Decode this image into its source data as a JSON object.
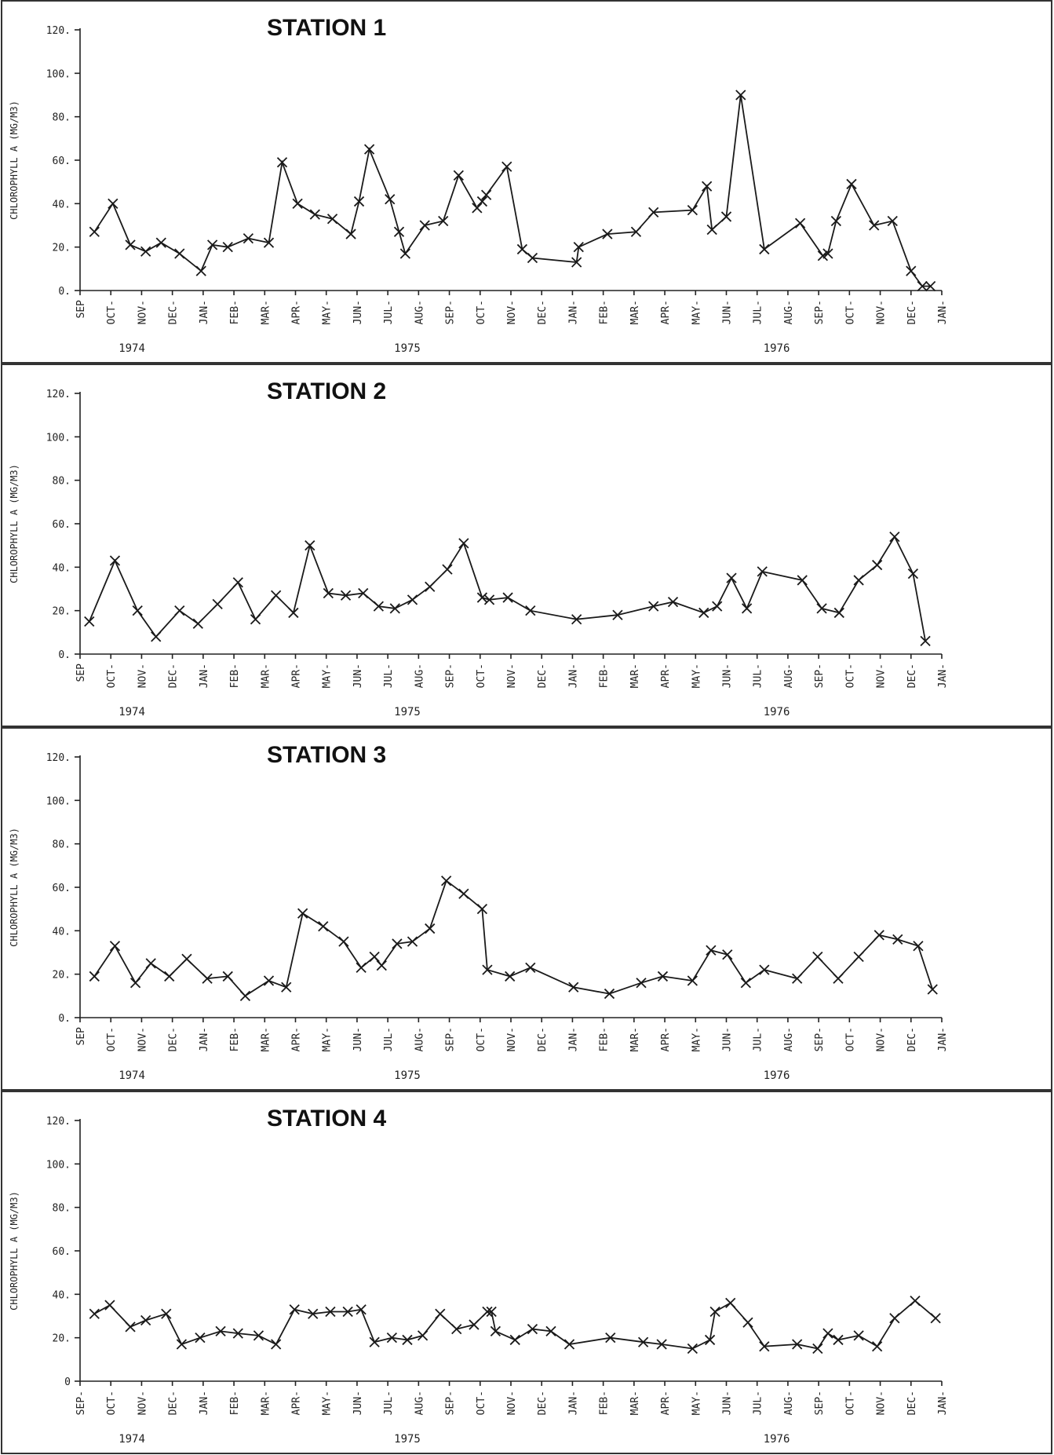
{
  "chart_data": [
    {
      "type": "line",
      "title": "STATION 1",
      "ylabel": "CHLOROPHYLL A (MG/M3)",
      "ylim": [
        0,
        120
      ],
      "yticks": [
        "0.",
        "20.",
        "40.",
        "60.",
        "80.",
        "100.",
        "120."
      ],
      "month_labels": [
        "SEP",
        "OCT-",
        "NOV-",
        "DEC-",
        "JAN-",
        "FEB-",
        "MAR-",
        "APR-",
        "MAY-",
        "JUN-",
        "JUL-",
        "AUG-",
        "SEP-",
        "OCT-",
        "NOV-",
        "DEC-",
        "JAN-",
        "FEB-",
        "MAR-",
        "APR-",
        "MAY-",
        "JUN-",
        "JUL-",
        "AUG-",
        "SEP-",
        "OCT-",
        "NOV-",
        "DEC-",
        "JAN-"
      ],
      "year_labels": [
        "1974",
        "1975",
        "1976"
      ],
      "x": [
        "1974-09-15",
        "1974-10-03",
        "1974-10-20",
        "1974-11-05",
        "1974-11-20",
        "1974-12-08",
        "1974-12-29",
        "1975-01-10",
        "1975-01-25",
        "1975-02-15",
        "1975-03-05",
        "1975-03-18",
        "1975-04-03",
        "1975-04-20",
        "1975-05-07",
        "1975-05-25",
        "1975-06-03",
        "1975-06-13",
        "1975-07-03",
        "1975-07-12",
        "1975-07-18",
        "1975-08-07",
        "1975-08-25",
        "1975-09-10",
        "1975-09-28",
        "1975-10-03",
        "1975-10-07",
        "1975-10-27",
        "1975-11-12",
        "1975-11-22",
        "1976-01-05",
        "1976-01-07",
        "1976-02-05",
        "1976-03-03",
        "1976-03-20",
        "1976-04-28",
        "1976-05-12",
        "1976-05-17",
        "1976-06-01",
        "1976-06-15",
        "1976-07-08",
        "1976-08-13",
        "1976-09-05",
        "1976-09-10",
        "1976-09-18",
        "1976-10-03",
        "1976-10-25",
        "1976-11-13",
        "1976-12-01",
        "1976-12-12",
        "1976-12-20"
      ],
      "values": [
        27,
        40,
        21,
        18,
        22,
        17,
        9,
        21,
        20,
        24,
        22,
        59,
        40,
        35,
        33,
        26,
        41,
        65,
        42,
        27,
        17,
        30,
        32,
        53,
        38,
        41,
        44,
        57,
        19,
        15,
        13,
        20,
        26,
        27,
        36,
        37,
        48,
        28,
        34,
        90,
        19,
        31,
        16,
        17,
        32,
        49,
        30,
        32,
        9,
        2,
        2
      ]
    },
    {
      "type": "line",
      "title": "STATION 2",
      "ylabel": "CHLOROPHYLL A (MG/M3)",
      "ylim": [
        0,
        120
      ],
      "yticks": [
        "0.",
        "20.",
        "40.",
        "60.",
        "80.",
        "100.",
        "120."
      ],
      "month_labels": [
        "SEP",
        "OCT-",
        "NOV-",
        "DEC-",
        "JAN-",
        "FEB-",
        "MAR-",
        "APR-",
        "MAY-",
        "JUN-",
        "JUL-",
        "AUG-",
        "SEP-",
        "OCT-",
        "NOV-",
        "DEC-",
        "JAN-",
        "FEB-",
        "MAR-",
        "APR-",
        "MAY-",
        "JUN-",
        "JUL-",
        "AUG-",
        "SEP-",
        "OCT-",
        "NOV-",
        "DEC-",
        "JAN-"
      ],
      "year_labels": [
        "1974",
        "1975",
        "1976"
      ],
      "x": [
        "1974-09-10",
        "1974-10-05",
        "1974-10-27",
        "1974-11-15",
        "1974-12-08",
        "1974-12-26",
        "1975-01-15",
        "1975-02-05",
        "1975-02-22",
        "1975-03-12",
        "1975-03-29",
        "1975-04-15",
        "1975-05-03",
        "1975-05-20",
        "1975-06-07",
        "1975-06-22",
        "1975-07-08",
        "1975-07-25",
        "1975-08-12",
        "1975-08-29",
        "1975-09-15",
        "1975-10-03",
        "1975-10-10",
        "1975-10-28",
        "1975-11-20",
        "1976-01-05",
        "1976-02-15",
        "1976-03-20",
        "1976-04-09",
        "1976-05-09",
        "1976-05-22",
        "1976-06-06",
        "1976-06-21",
        "1976-07-06",
        "1976-08-15",
        "1976-09-04",
        "1976-09-21",
        "1976-10-10",
        "1976-10-28",
        "1976-11-15",
        "1976-12-03",
        "1976-12-15"
      ],
      "values": [
        15,
        43,
        20,
        8,
        20,
        14,
        23,
        33,
        16,
        27,
        19,
        50,
        28,
        27,
        28,
        22,
        21,
        25,
        31,
        39,
        51,
        26,
        25,
        26,
        20,
        16,
        18,
        22,
        24,
        19,
        22,
        35,
        21,
        38,
        34,
        21,
        19,
        34,
        41,
        54,
        37,
        6
      ]
    },
    {
      "type": "line",
      "title": "STATION 3",
      "ylabel": "CHLOROPHYLL A (MG/M3)",
      "ylim": [
        0,
        120
      ],
      "yticks": [
        "0.",
        "20.",
        "40.",
        "60.",
        "80.",
        "100.",
        "120."
      ],
      "month_labels": [
        "SEP",
        "OCT-",
        "NOV-",
        "DEC-",
        "JAN-",
        "FEB-",
        "MAR-",
        "APR-",
        "MAY-",
        "JUN-",
        "JUL-",
        "AUG-",
        "SEP-",
        "OCT-",
        "NOV-",
        "DEC-",
        "JAN-",
        "FEB-",
        "MAR-",
        "APR-",
        "MAY-",
        "JUN-",
        "JUL-",
        "AUG-",
        "SEP-",
        "OCT-",
        "NOV-",
        "DEC-",
        "JAN-"
      ],
      "year_labels": [
        "1974",
        "1975",
        "1976"
      ],
      "x": [
        "1974-09-15",
        "1974-10-05",
        "1974-10-25",
        "1974-11-10",
        "1974-11-28",
        "1974-12-15",
        "1975-01-05",
        "1975-01-25",
        "1975-02-12",
        "1975-03-05",
        "1975-03-22",
        "1975-04-08",
        "1975-04-28",
        "1975-05-18",
        "1975-06-05",
        "1975-06-18",
        "1975-06-25",
        "1975-07-10",
        "1975-07-25",
        "1975-08-12",
        "1975-08-28",
        "1975-09-15",
        "1975-10-03",
        "1975-10-08",
        "1975-10-30",
        "1975-11-20",
        "1976-01-02",
        "1976-02-07",
        "1976-03-08",
        "1976-03-29",
        "1976-04-28",
        "1976-05-16",
        "1976-06-02",
        "1976-06-20",
        "1976-07-08",
        "1976-08-10",
        "1976-08-30",
        "1976-09-20",
        "1976-10-10",
        "1976-10-30",
        "1976-11-18",
        "1976-12-08",
        "1976-12-22"
      ],
      "values": [
        19,
        33,
        16,
        25,
        19,
        27,
        18,
        19,
        10,
        17,
        14,
        48,
        42,
        35,
        23,
        28,
        24,
        34,
        35,
        41,
        63,
        57,
        50,
        22,
        19,
        23,
        14,
        11,
        16,
        19,
        17,
        31,
        29,
        16,
        22,
        18,
        28,
        18,
        28,
        38,
        36,
        33,
        13
      ]
    },
    {
      "type": "line",
      "title": "STATION 4",
      "ylabel": "CHLOROPHYLL A (MG/M3)",
      "ylim": [
        0,
        120
      ],
      "yticks": [
        "0",
        "20.",
        "40.",
        "60.",
        "80.",
        "100.",
        "120."
      ],
      "month_labels": [
        "SEP-",
        "OCT-",
        "NOV-",
        "DEC-",
        "JAN-",
        "FEB-",
        "MAR-",
        "APR-",
        "MAY-",
        "JUN-",
        "JUL-",
        "AUG-",
        "SEP-",
        "OCT-",
        "NOV-",
        "DEC-",
        "JAN-",
        "FEB-",
        "MAR-",
        "APR-",
        "MAY-",
        "JUN-",
        "JUL-",
        "AUG-",
        "SEP-",
        "OCT-",
        "NOV-",
        "DEC-",
        "JAN-"
      ],
      "year_labels": [
        "1974",
        "1975",
        "1976"
      ],
      "x": [
        "1974-09-15",
        "1974-09-30",
        "1974-10-20",
        "1974-11-05",
        "1974-11-25",
        "1974-12-10",
        "1974-12-28",
        "1975-01-18",
        "1975-02-05",
        "1975-02-25",
        "1975-03-12",
        "1975-03-30",
        "1975-04-18",
        "1975-05-05",
        "1975-05-22",
        "1975-06-05",
        "1975-06-18",
        "1975-07-05",
        "1975-07-20",
        "1975-08-05",
        "1975-08-22",
        "1975-09-08",
        "1975-09-25",
        "1975-10-08",
        "1975-10-12",
        "1975-10-16",
        "1975-11-05",
        "1975-11-22",
        "1975-12-10",
        "1975-12-28",
        "1976-02-08",
        "1976-03-10",
        "1976-03-28",
        "1976-04-28",
        "1976-05-15",
        "1976-05-20",
        "1976-06-05",
        "1976-06-22",
        "1976-07-08",
        "1976-08-10",
        "1976-08-30",
        "1976-09-10",
        "1976-09-20",
        "1976-10-10",
        "1976-10-28",
        "1976-11-15",
        "1976-12-05",
        "1976-12-25"
      ],
      "values": [
        31,
        35,
        25,
        28,
        31,
        17,
        20,
        23,
        22,
        21,
        17,
        33,
        31,
        32,
        32,
        33,
        18,
        20,
        19,
        21,
        31,
        24,
        26,
        32,
        32,
        23,
        19,
        24,
        23,
        17,
        20,
        18,
        17,
        15,
        19,
        32,
        36,
        27,
        16,
        17,
        15,
        22,
        19,
        21,
        16,
        29,
        37,
        29
      ]
    }
  ]
}
